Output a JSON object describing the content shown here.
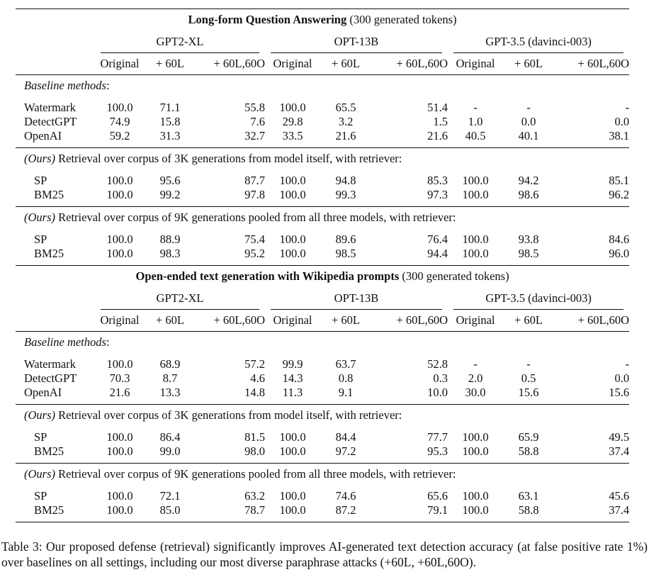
{
  "table": {
    "columns": [
      "Original",
      "+ 60L",
      "+ 60L,60O"
    ],
    "models": [
      "GPT2-XL",
      "OPT-13B",
      "GPT-3.5 (davinci-003)"
    ],
    "panels": [
      {
        "title_bold": "Long-form Question Answering",
        "title_rest": " (300 generated tokens)",
        "sections": [
          {
            "label_italic": "Baseline methods",
            "label_rest": ":",
            "rows": [
              {
                "method": "Watermark",
                "values": [
                  "100.0",
                  "71.1",
                  "55.8",
                  "100.0",
                  "65.5",
                  "51.4",
                  "-",
                  "-",
                  "-"
                ]
              },
              {
                "method": "DetectGPT",
                "values": [
                  "74.9",
                  "15.8",
                  "7.6",
                  "29.8",
                  "3.2",
                  "1.5",
                  "1.0",
                  "0.0",
                  "0.0"
                ]
              },
              {
                "method": "OpenAI",
                "values": [
                  "59.2",
                  "31.3",
                  "32.7",
                  "33.5",
                  "21.6",
                  "21.6",
                  "40.5",
                  "40.1",
                  "38.1"
                ]
              }
            ]
          },
          {
            "label_italic": "(Ours)",
            "label_rest": " Retrieval over corpus of 3K generations from model itself, with retriever:",
            "rows": [
              {
                "method": "SP",
                "values": [
                  "100.0",
                  "95.6",
                  "87.7",
                  "100.0",
                  "94.8",
                  "85.3",
                  "100.0",
                  "94.2",
                  "85.1"
                ]
              },
              {
                "method": "BM25",
                "values": [
                  "100.0",
                  "99.2",
                  "97.8",
                  "100.0",
                  "99.3",
                  "97.3",
                  "100.0",
                  "98.6",
                  "96.2"
                ]
              }
            ]
          },
          {
            "label_italic": "(Ours)",
            "label_rest": " Retrieval over corpus of 9K generations pooled from all three models, with retriever:",
            "rows": [
              {
                "method": "SP",
                "values": [
                  "100.0",
                  "88.9",
                  "75.4",
                  "100.0",
                  "89.6",
                  "76.4",
                  "100.0",
                  "93.8",
                  "84.6"
                ]
              },
              {
                "method": "BM25",
                "values": [
                  "100.0",
                  "98.3",
                  "95.2",
                  "100.0",
                  "98.5",
                  "94.4",
                  "100.0",
                  "98.5",
                  "96.0"
                ]
              }
            ]
          }
        ]
      },
      {
        "title_bold": "Open-ended text generation with Wikipedia prompts",
        "title_rest": " (300 generated tokens)",
        "sections": [
          {
            "label_italic": "Baseline methods",
            "label_rest": ":",
            "rows": [
              {
                "method": "Watermark",
                "values": [
                  "100.0",
                  "68.9",
                  "57.2",
                  "99.9",
                  "63.7",
                  "52.8",
                  "-",
                  "-",
                  "-"
                ]
              },
              {
                "method": "DetectGPT",
                "values": [
                  "70.3",
                  "8.7",
                  "4.6",
                  "14.3",
                  "0.8",
                  "0.3",
                  "2.0",
                  "0.5",
                  "0.0"
                ]
              },
              {
                "method": "OpenAI",
                "values": [
                  "21.6",
                  "13.3",
                  "14.8",
                  "11.3",
                  "9.1",
                  "10.0",
                  "30.0",
                  "15.6",
                  "15.6"
                ]
              }
            ]
          },
          {
            "label_italic": "(Ours)",
            "label_rest": " Retrieval over corpus of 3K generations from model itself, with retriever:",
            "rows": [
              {
                "method": "SP",
                "values": [
                  "100.0",
                  "86.4",
                  "81.5",
                  "100.0",
                  "84.4",
                  "77.7",
                  "100.0",
                  "65.9",
                  "49.5"
                ]
              },
              {
                "method": "BM25",
                "values": [
                  "100.0",
                  "99.0",
                  "98.0",
                  "100.0",
                  "97.2",
                  "95.3",
                  "100.0",
                  "58.8",
                  "37.4"
                ]
              }
            ]
          },
          {
            "label_italic": "(Ours)",
            "label_rest": " Retrieval over corpus of 9K generations pooled from all three models, with retriever:",
            "rows": [
              {
                "method": "SP",
                "values": [
                  "100.0",
                  "72.1",
                  "63.2",
                  "100.0",
                  "74.6",
                  "65.6",
                  "100.0",
                  "63.1",
                  "45.6"
                ]
              },
              {
                "method": "BM25",
                "values": [
                  "100.0",
                  "85.0",
                  "78.7",
                  "100.0",
                  "87.2",
                  "79.1",
                  "100.0",
                  "58.8",
                  "37.4"
                ]
              }
            ]
          }
        ]
      }
    ]
  },
  "caption": "Table 3: Our proposed defense (retrieval) significantly improves AI-generated text detection accuracy (at false positive rate 1%) over baselines on all settings, including our most diverse paraphrase attacks (+60L, +60L,60O)."
}
